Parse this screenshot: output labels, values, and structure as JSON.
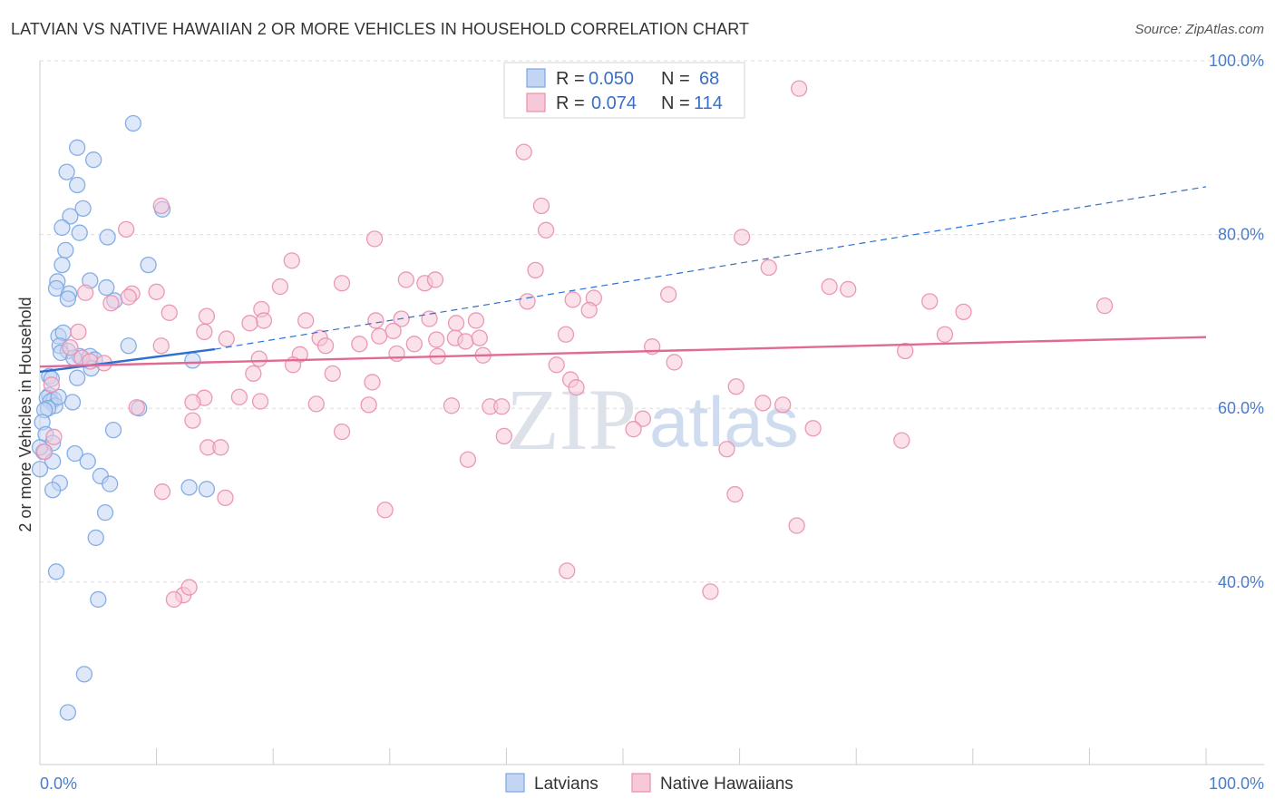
{
  "header": {
    "title": "LATVIAN VS NATIVE HAWAIIAN 2 OR MORE VEHICLES IN HOUSEHOLD CORRELATION CHART",
    "source": "Source: ZipAtlas.com"
  },
  "watermark": {
    "zip": "ZIP",
    "atlas": "atlas"
  },
  "chart_data": {
    "type": "scatter",
    "title": "LATVIAN VS NATIVE HAWAIIAN 2 OR MORE VEHICLES IN HOUSEHOLD CORRELATION CHART",
    "xlabel": "",
    "ylabel": "2 or more Vehicles in Household",
    "xlim": [
      0,
      100
    ],
    "ylim": [
      19,
      102
    ],
    "x_tick_labels": [
      "0.0%",
      "100.0%"
    ],
    "y_ticks": [
      {
        "value": 40,
        "label": "40.0%"
      },
      {
        "value": 60,
        "label": "60.0%"
      },
      {
        "value": 80,
        "label": "80.0%"
      },
      {
        "value": 100,
        "label": "100.0%"
      }
    ],
    "legend": {
      "r_label": "R =",
      "n_label": "N =",
      "rows": [
        {
          "series": "Latvians",
          "r": "0.050",
          "n": "68"
        },
        {
          "series": "Native Hawaiians",
          "r": "0.074",
          "n": "114"
        }
      ]
    },
    "series": [
      {
        "name": "Latvians",
        "color": "#7aa6e3",
        "fill": "#c2d6f3",
        "trend": {
          "x0": 0,
          "y0": 64.2,
          "x1": 15,
          "y1": 66.8,
          "dash_x1": 100,
          "dash_y1": 85.5,
          "color": "#2f6fd0"
        },
        "points": [
          [
            8.0,
            92.8
          ],
          [
            3.2,
            90.0
          ],
          [
            4.6,
            88.6
          ],
          [
            2.3,
            87.2
          ],
          [
            3.2,
            85.7
          ],
          [
            10.5,
            82.9
          ],
          [
            3.7,
            83.0
          ],
          [
            2.6,
            82.1
          ],
          [
            1.9,
            80.8
          ],
          [
            3.4,
            80.2
          ],
          [
            5.8,
            79.7
          ],
          [
            2.2,
            78.2
          ],
          [
            1.9,
            76.5
          ],
          [
            9.3,
            76.5
          ],
          [
            4.3,
            74.7
          ],
          [
            1.5,
            74.6
          ],
          [
            1.4,
            73.8
          ],
          [
            5.7,
            73.9
          ],
          [
            2.5,
            73.2
          ],
          [
            2.4,
            72.6
          ],
          [
            6.4,
            72.4
          ],
          [
            7.6,
            67.2
          ],
          [
            1.6,
            68.3
          ],
          [
            2.0,
            68.7
          ],
          [
            1.7,
            67.2
          ],
          [
            2.4,
            66.6
          ],
          [
            1.8,
            66.4
          ],
          [
            3.4,
            66.0
          ],
          [
            4.3,
            66.0
          ],
          [
            2.9,
            65.8
          ],
          [
            4.7,
            65.6
          ],
          [
            13.1,
            65.5
          ],
          [
            4.4,
            64.6
          ],
          [
            3.2,
            63.5
          ],
          [
            0.8,
            63.7
          ],
          [
            1.0,
            63.4
          ],
          [
            0.8,
            61.5
          ],
          [
            0.6,
            61.2
          ],
          [
            1.2,
            61.0
          ],
          [
            0.9,
            60.8
          ],
          [
            2.8,
            60.7
          ],
          [
            1.3,
            60.3
          ],
          [
            0.7,
            60.0
          ],
          [
            8.5,
            60.0
          ],
          [
            0.4,
            59.8
          ],
          [
            0.2,
            58.4
          ],
          [
            6.3,
            57.5
          ],
          [
            0.5,
            57.0
          ],
          [
            1.1,
            56.0
          ],
          [
            0.3,
            55.0
          ],
          [
            3.0,
            54.8
          ],
          [
            1.1,
            53.9
          ],
          [
            4.1,
            53.9
          ],
          [
            0.0,
            53.0
          ],
          [
            5.2,
            52.2
          ],
          [
            6.0,
            51.3
          ],
          [
            1.7,
            51.4
          ],
          [
            12.8,
            50.9
          ],
          [
            14.3,
            50.7
          ],
          [
            1.1,
            50.6
          ],
          [
            5.6,
            48.0
          ],
          [
            4.8,
            45.1
          ],
          [
            1.4,
            41.2
          ],
          [
            5.0,
            38.0
          ],
          [
            3.8,
            29.4
          ],
          [
            2.4,
            25.0
          ],
          [
            0.0,
            55.5
          ],
          [
            1.6,
            61.3
          ]
        ]
      },
      {
        "name": "Native Hawaiians",
        "color": "#e98fae",
        "fill": "#f6c8d8",
        "trend": {
          "x0": 0,
          "y0": 64.8,
          "x1": 100,
          "y1": 68.2,
          "color": "#e06a94"
        },
        "points": [
          [
            65.1,
            96.8
          ],
          [
            41.5,
            89.5
          ],
          [
            43.0,
            83.3
          ],
          [
            10.4,
            83.3
          ],
          [
            43.4,
            80.5
          ],
          [
            7.4,
            80.6
          ],
          [
            60.2,
            79.7
          ],
          [
            28.7,
            79.5
          ],
          [
            21.6,
            77.0
          ],
          [
            42.5,
            75.9
          ],
          [
            62.5,
            76.2
          ],
          [
            25.9,
            74.4
          ],
          [
            33.0,
            74.4
          ],
          [
            31.4,
            74.8
          ],
          [
            33.9,
            74.8
          ],
          [
            20.6,
            74.0
          ],
          [
            67.7,
            74.0
          ],
          [
            69.3,
            73.7
          ],
          [
            10.0,
            73.4
          ],
          [
            6.1,
            72.1
          ],
          [
            7.9,
            73.2
          ],
          [
            53.9,
            73.1
          ],
          [
            3.9,
            73.3
          ],
          [
            45.7,
            72.5
          ],
          [
            47.5,
            72.7
          ],
          [
            41.8,
            72.3
          ],
          [
            14.3,
            70.6
          ],
          [
            7.6,
            72.8
          ],
          [
            19.0,
            71.4
          ],
          [
            47.1,
            71.3
          ],
          [
            76.3,
            72.3
          ],
          [
            79.2,
            71.1
          ],
          [
            91.3,
            71.8
          ],
          [
            11.1,
            71.0
          ],
          [
            19.2,
            70.1
          ],
          [
            22.8,
            70.1
          ],
          [
            28.8,
            70.1
          ],
          [
            31.0,
            70.3
          ],
          [
            33.4,
            70.3
          ],
          [
            35.7,
            69.8
          ],
          [
            37.4,
            70.1
          ],
          [
            3.3,
            68.8
          ],
          [
            14.1,
            68.8
          ],
          [
            18.0,
            69.8
          ],
          [
            24.0,
            68.1
          ],
          [
            29.1,
            68.3
          ],
          [
            30.3,
            68.9
          ],
          [
            32.1,
            67.4
          ],
          [
            34.0,
            67.9
          ],
          [
            35.6,
            68.1
          ],
          [
            36.5,
            67.7
          ],
          [
            37.7,
            68.1
          ],
          [
            38.0,
            66.1
          ],
          [
            45.1,
            68.5
          ],
          [
            52.5,
            67.1
          ],
          [
            77.6,
            68.5
          ],
          [
            2.6,
            67.0
          ],
          [
            10.4,
            67.2
          ],
          [
            16.0,
            68.0
          ],
          [
            24.5,
            67.2
          ],
          [
            27.4,
            67.4
          ],
          [
            30.6,
            66.3
          ],
          [
            34.1,
            66.0
          ],
          [
            3.6,
            65.8
          ],
          [
            4.3,
            65.4
          ],
          [
            5.5,
            65.2
          ],
          [
            18.8,
            65.7
          ],
          [
            22.3,
            66.2
          ],
          [
            54.4,
            65.3
          ],
          [
            21.7,
            65.0
          ],
          [
            44.3,
            65.0
          ],
          [
            74.2,
            66.6
          ],
          [
            18.3,
            64.0
          ],
          [
            25.1,
            64.0
          ],
          [
            28.5,
            63.0
          ],
          [
            45.5,
            63.3
          ],
          [
            46.0,
            62.4
          ],
          [
            59.7,
            62.5
          ],
          [
            1.0,
            62.7
          ],
          [
            14.1,
            61.2
          ],
          [
            17.1,
            61.3
          ],
          [
            18.9,
            60.8
          ],
          [
            13.1,
            60.7
          ],
          [
            23.7,
            60.5
          ],
          [
            28.2,
            60.4
          ],
          [
            35.3,
            60.3
          ],
          [
            38.6,
            60.2
          ],
          [
            39.6,
            60.2
          ],
          [
            62.0,
            60.6
          ],
          [
            63.7,
            60.4
          ],
          [
            8.3,
            60.1
          ],
          [
            13.1,
            58.6
          ],
          [
            51.7,
            58.8
          ],
          [
            25.9,
            57.3
          ],
          [
            39.8,
            56.8
          ],
          [
            50.9,
            57.6
          ],
          [
            66.3,
            57.7
          ],
          [
            1.2,
            56.7
          ],
          [
            14.4,
            55.5
          ],
          [
            15.5,
            55.5
          ],
          [
            58.9,
            55.3
          ],
          [
            73.9,
            56.3
          ],
          [
            0.4,
            55.0
          ],
          [
            36.7,
            54.1
          ],
          [
            10.5,
            50.4
          ],
          [
            15.9,
            49.7
          ],
          [
            59.6,
            50.1
          ],
          [
            29.6,
            48.3
          ],
          [
            64.9,
            46.5
          ],
          [
            45.2,
            41.3
          ],
          [
            57.5,
            38.9
          ],
          [
            12.3,
            38.5
          ],
          [
            12.8,
            39.4
          ],
          [
            11.5,
            38.0
          ]
        ]
      }
    ]
  },
  "bottom_legend": [
    {
      "label": "Latvians"
    },
    {
      "label": "Native Hawaiians"
    }
  ]
}
